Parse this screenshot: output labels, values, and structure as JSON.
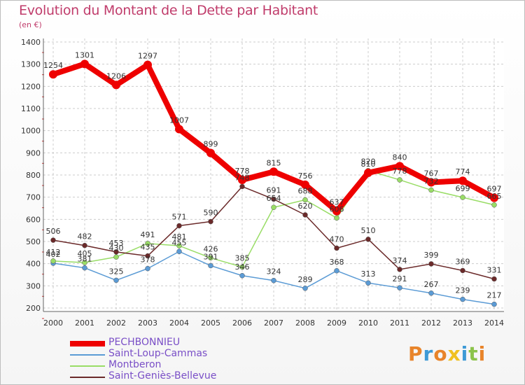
{
  "header": {
    "title": "Evolution du Montant de la Dette par Habitant",
    "subtitle": "(en €)"
  },
  "logo": {
    "text": "Proxiti",
    "colors": [
      "#e8842a",
      "#3e9ad6",
      "#e8842a",
      "#f0c020",
      "#3e9ad6",
      "#8bc34a",
      "#e8842a"
    ]
  },
  "chart_data": {
    "type": "line",
    "x": [
      "2000",
      "2001",
      "2002",
      "2003",
      "2004",
      "2005",
      "2006",
      "2007",
      "2008",
      "2009",
      "2010",
      "2011",
      "2012",
      "2013",
      "2014"
    ],
    "ylim": [
      200,
      1400
    ],
    "yticks": [
      200,
      300,
      400,
      500,
      600,
      700,
      800,
      900,
      1000,
      1100,
      1200,
      1300,
      1400
    ],
    "grid": true,
    "legend_position": "bottom-left",
    "series": [
      {
        "name": "PECHBONNIEU",
        "color": "#ee0000",
        "values": [
          1254,
          1301,
          1206,
          1297,
          1007,
          899,
          778,
          815,
          756,
          637,
          810,
          840,
          767,
          774,
          697
        ]
      },
      {
        "name": "Saint-Loup-Cammas",
        "color": "#5b9bd5",
        "values": [
          402,
          381,
          325,
          378,
          455,
          391,
          346,
          324,
          289,
          368,
          313,
          291,
          267,
          239,
          217
        ]
      },
      {
        "name": "Montberon",
        "color": "#99dd66",
        "values": [
          412,
          405,
          430,
          491,
          481,
          426,
          385,
          654,
          688,
          606,
          820,
          778,
          732,
          699,
          665
        ]
      },
      {
        "name": "Saint-Geniès-Bellevue",
        "color": "#6b2a2a",
        "values": [
          506,
          482,
          453,
          435,
          571,
          590,
          748,
          691,
          620,
          470,
          510,
          374,
          399,
          369,
          331
        ]
      }
    ]
  }
}
